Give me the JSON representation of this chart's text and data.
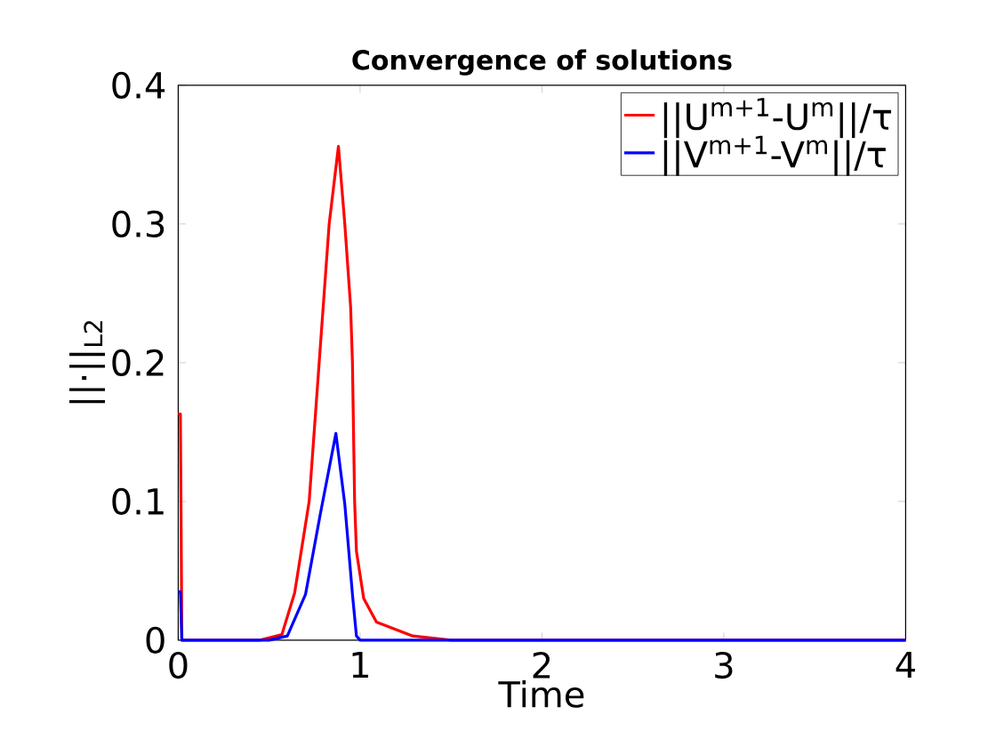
{
  "chart_data": {
    "type": "line",
    "title": "Convergence of solutions",
    "xlabel": "Time",
    "ylabel": "||·||$_{L2}$",
    "xlim": [
      0,
      4
    ],
    "ylim": [
      0,
      0.4
    ],
    "xticks": [
      0,
      1,
      2,
      3,
      4
    ],
    "yticks": [
      0,
      0.1,
      0.2,
      0.3,
      0.4
    ],
    "grid": false,
    "legend": "top right",
    "marker": "none",
    "line_style": "solid",
    "series": [
      {
        "name": "||U$^{m+1}$-U$^{m}$||/τ",
        "color": "#ff0000",
        "x": [
          0,
          0.012,
          0.02,
          0.45,
          0.57,
          0.64,
          0.72,
          0.775,
          0.83,
          0.881,
          0.916,
          0.948,
          0.958,
          0.97,
          0.98,
          1.02,
          1.09,
          1.29,
          1.5,
          4
        ],
        "values": [
          0.163,
          0.163,
          0,
          0,
          0.004,
          0.034,
          0.1,
          0.2,
          0.3,
          0.356,
          0.3,
          0.24,
          0.2,
          0.1,
          0.064,
          0.03,
          0.013,
          0.003,
          0,
          0
        ]
      },
      {
        "name": "||V$^{m+1}$-V$^{m}$||/τ",
        "color": "#0000ff",
        "x": [
          0,
          0.012,
          0.02,
          0.5,
          0.6,
          0.7,
          0.78,
          0.867,
          0.916,
          0.958,
          0.98,
          1.0,
          4
        ],
        "values": [
          0.035,
          0.035,
          0,
          0,
          0.003,
          0.033,
          0.09,
          0.149,
          0.098,
          0.033,
          0.003,
          0,
          0
        ]
      }
    ]
  }
}
